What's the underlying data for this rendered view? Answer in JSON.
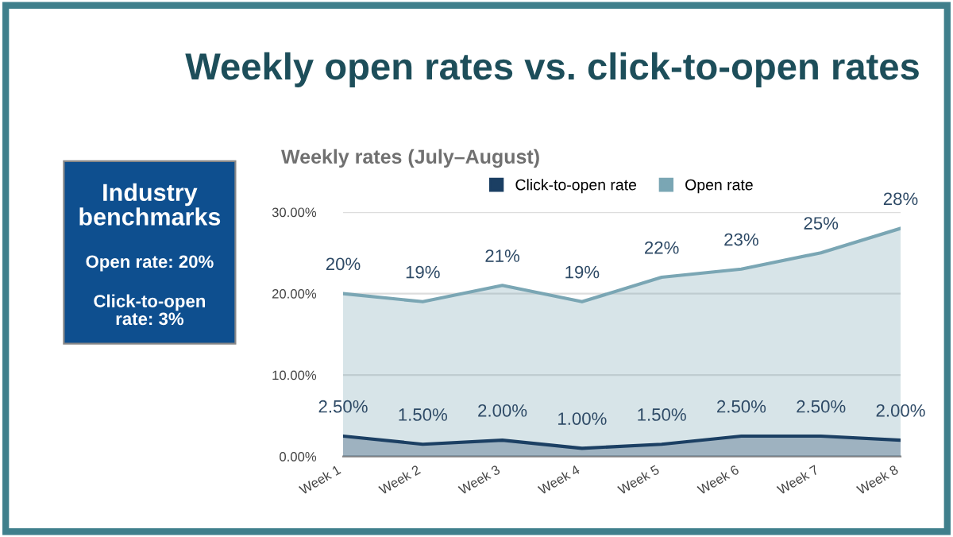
{
  "chart_data": {
    "type": "area",
    "title": "Weekly open rates vs. click-to-open rates",
    "subtitle": "Weekly rates (July–August)",
    "categories": [
      "Week 1",
      "Week 2",
      "Week 3",
      "Week 4",
      "Week 5",
      "Week 6",
      "Week 7",
      "Week 8"
    ],
    "series": [
      {
        "name": "Click-to-open rate",
        "color": "#1b3f63",
        "values": [
          2.5,
          1.5,
          2.0,
          1.0,
          1.5,
          2.5,
          2.5,
          2.0
        ],
        "value_labels": [
          "2.50%",
          "1.50%",
          "2.00%",
          "1.00%",
          "1.50%",
          "2.50%",
          "2.50%",
          "2.00%"
        ]
      },
      {
        "name": "Open rate",
        "color": "#7aa6b4",
        "values": [
          20,
          19,
          21,
          19,
          22,
          23,
          25,
          28
        ],
        "value_labels": [
          "20%",
          "19%",
          "21%",
          "19%",
          "22%",
          "23%",
          "25%",
          "28%"
        ]
      }
    ],
    "ylim": [
      0,
      30
    ],
    "yticks": [
      {
        "value": 0,
        "label": "0.00%"
      },
      {
        "value": 10,
        "label": "10.00%"
      },
      {
        "value": 20,
        "label": "20.00%"
      },
      {
        "value": 30,
        "label": "30.00%"
      }
    ],
    "grid": "y",
    "legend": "top",
    "marker": "none",
    "annotations": [
      "Industry\nbenchmarks",
      "Open rate: 20%",
      "Click-to-open\nrate: 3%"
    ]
  }
}
